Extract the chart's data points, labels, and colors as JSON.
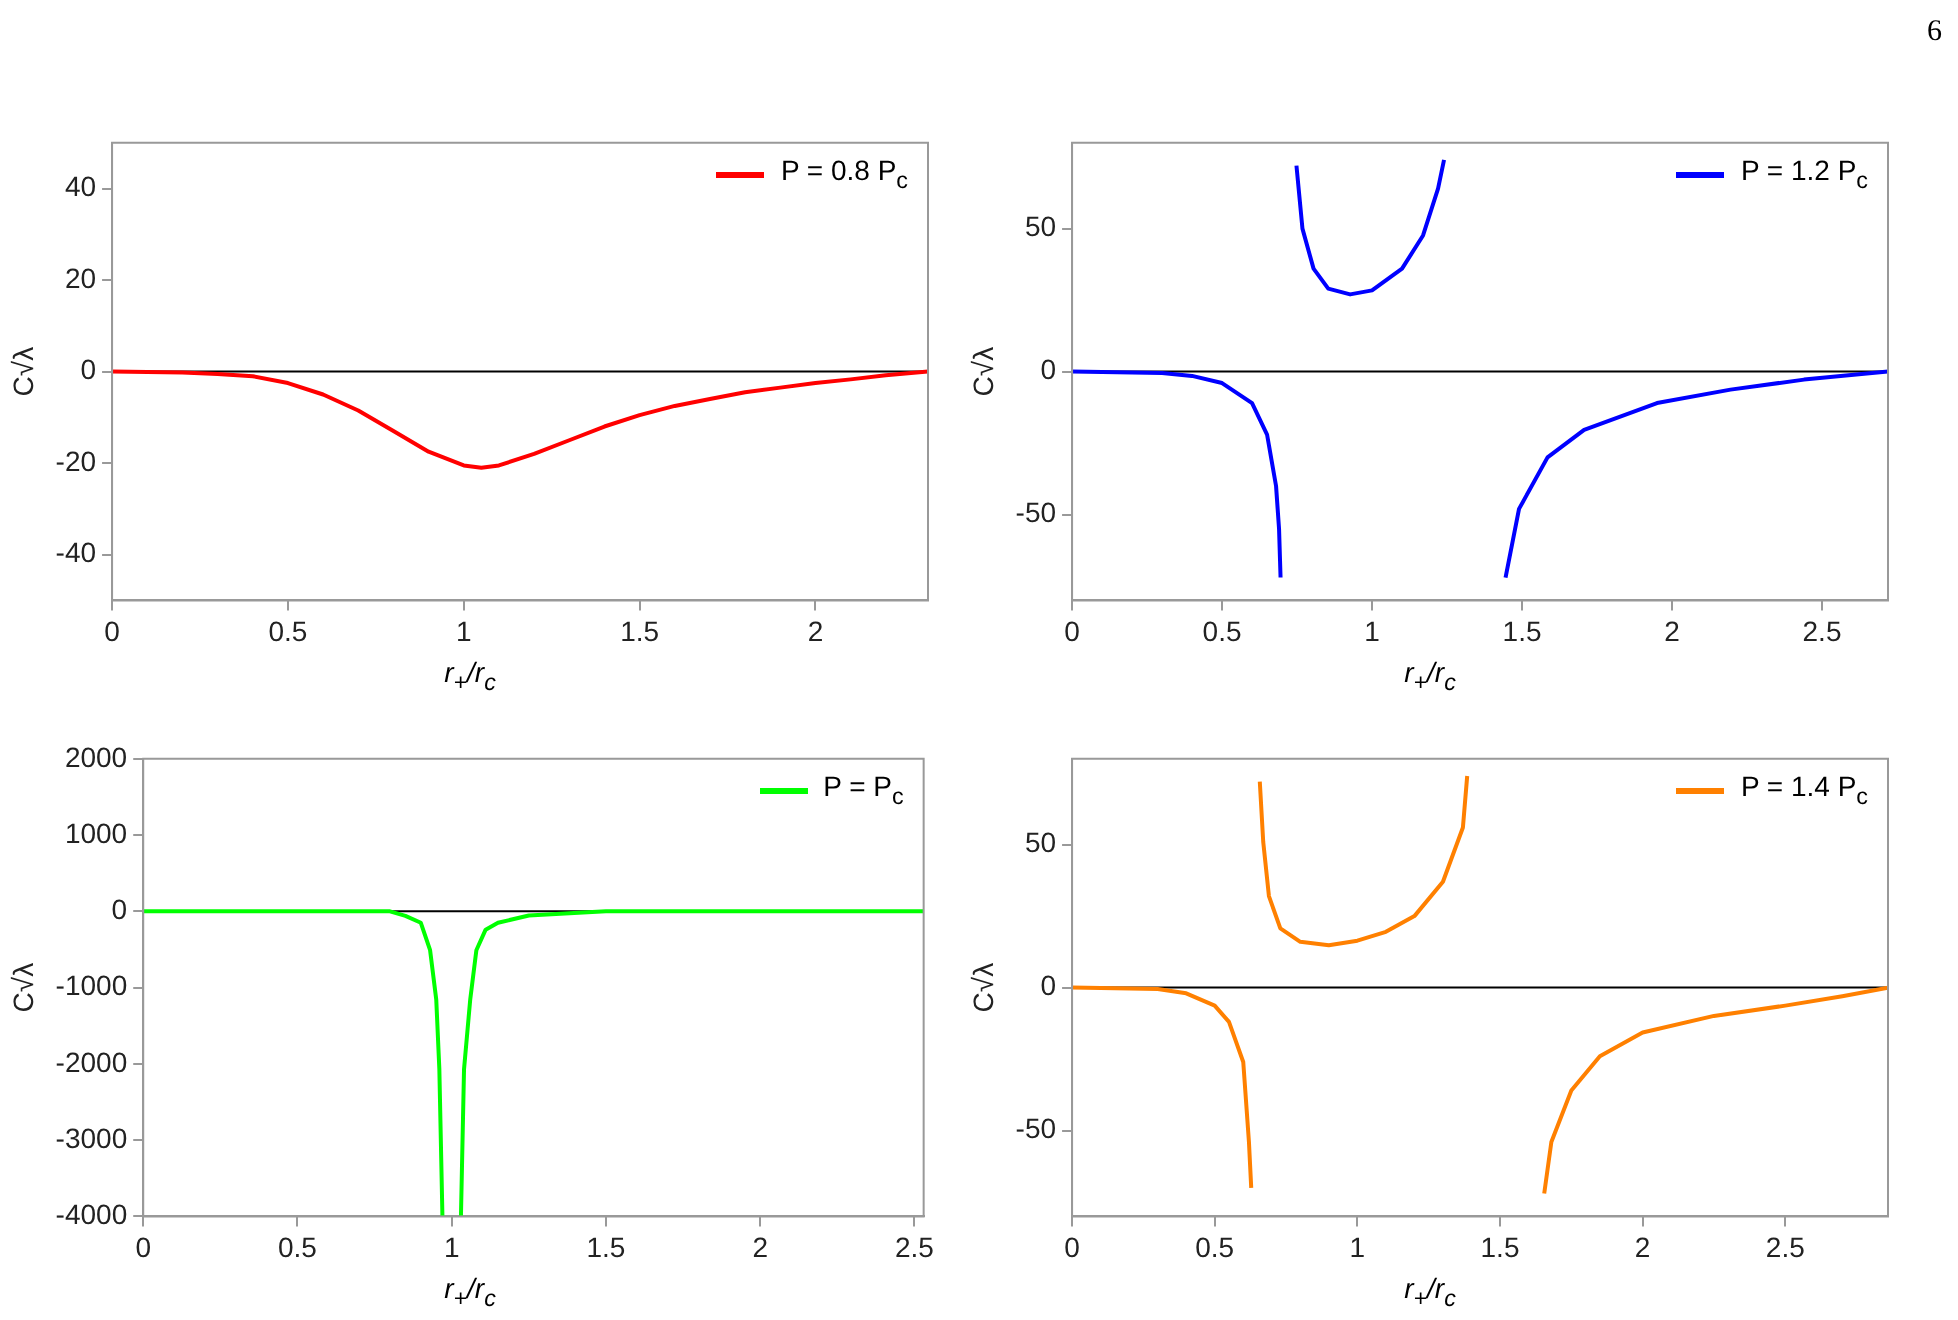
{
  "chart_data": [
    {
      "type": "line",
      "xlabel": "r$_{+}$/r$_{c}$",
      "ylabel": "C√λ",
      "annotations": [
        "6"
      ],
      "legend": "top right",
      "xlim": [
        0,
        2.32
      ],
      "xticks": [
        0,
        0.5,
        1,
        1.5,
        2
      ],
      "ylim": [
        -50,
        50
      ],
      "yticks": [
        -40,
        -20,
        0,
        20,
        40
      ],
      "ref_lines": [
        {
          "axis": "y",
          "value": 0,
          "color": "#000000"
        }
      ],
      "series": [
        {
          "name": "P = 0.8 P$_{c}$",
          "color": "#ff0000",
          "x": [
            0,
            0.2,
            0.3,
            0.4,
            0.5,
            0.6,
            0.7,
            0.8,
            0.9,
            1.0,
            1.05,
            1.1,
            1.2,
            1.3,
            1.4,
            1.5,
            1.6,
            1.7,
            1.8,
            1.9,
            2.0,
            2.1,
            2.2,
            2.32
          ],
          "values": [
            0,
            -0.2,
            -0.5,
            -1,
            -2.5,
            -5,
            -8.5,
            -13,
            -17.5,
            -20.5,
            -21,
            -20.5,
            -18,
            -15,
            -12,
            -9.5,
            -7.5,
            -6,
            -4.5,
            -3.5,
            -2.5,
            -1.7,
            -0.8,
            0
          ]
        }
      ]
    },
    {
      "type": "line",
      "xlabel": "r$_{+}$/r$_{c}$",
      "ylabel": "C√λ",
      "legend": "top right",
      "xlim": [
        0,
        2.72
      ],
      "xticks": [
        0,
        0.5,
        1,
        1.5,
        2,
        2.5
      ],
      "ylim": [
        -80,
        80
      ],
      "yticks": [
        -50,
        0,
        50
      ],
      "ref_lines": [
        {
          "axis": "y",
          "value": 0,
          "color": "#000000"
        }
      ],
      "series": [
        {
          "name": "P = 1.2 P$_{c}$",
          "color": "#0000ff",
          "x": [
            0,
            0.3,
            0.4,
            0.5,
            0.6,
            0.65,
            0.68,
            0.69,
            0.695,
            0.72,
            0.748,
            0.768,
            0.805,
            0.854,
            0.927,
            1.0,
            1.1,
            1.17,
            1.22,
            1.24,
            1.3,
            1.445,
            1.49,
            1.585,
            1.707,
            1.95,
            2.195,
            2.44,
            2.72
          ],
          "values": [
            0,
            -0.5,
            -1.5,
            -4,
            -11,
            -22,
            -40,
            -55,
            -72,
            null,
            72,
            50,
            36,
            29,
            27,
            28.4,
            36,
            47.6,
            64,
            74,
            null,
            -72,
            -48,
            -30,
            -20.4,
            -11,
            -6.3,
            -2.8,
            0
          ]
        }
      ]
    },
    {
      "type": "line",
      "xlabel": "r$_{+}$/r$_{c}$",
      "ylabel": "C√λ",
      "legend": "top right",
      "xlim": [
        0,
        2.53
      ],
      "xticks": [
        0,
        0.5,
        1,
        1.5,
        2,
        2.5
      ],
      "ylim": [
        -4000,
        2000
      ],
      "yticks": [
        -4000,
        -3000,
        -2000,
        -1000,
        0,
        1000,
        2000
      ],
      "ref_lines": [
        {
          "axis": "y",
          "value": 0,
          "color": "#000000"
        }
      ],
      "series": [
        {
          "name": "P =  P$_{c}$",
          "color": "#00ff00",
          "x": [
            0,
            0.7,
            0.8,
            0.85,
            0.9,
            0.93,
            0.95,
            0.96,
            0.97,
            1.0,
            1.03,
            1.04,
            1.06,
            1.08,
            1.11,
            1.15,
            1.25,
            1.5,
            2.0,
            2.53
          ],
          "values": [
            0,
            0,
            0,
            -60,
            -150,
            -510,
            -1160,
            -2070,
            -4000,
            null,
            -4000,
            -2070,
            -1160,
            -510,
            -240,
            -150,
            -55,
            0,
            0,
            0
          ]
        }
      ]
    },
    {
      "type": "line",
      "xlabel": "r$_{+}$/r$_{c}$",
      "ylabel": "C√λ",
      "legend": "top right",
      "xlim": [
        0,
        2.86
      ],
      "xticks": [
        0,
        0.5,
        1,
        1.5,
        2,
        2.5
      ],
      "ylim": [
        -80,
        80
      ],
      "yticks": [
        -50,
        0,
        50
      ],
      "ref_lines": [
        {
          "axis": "y",
          "value": 0,
          "color": "#000000"
        }
      ],
      "series": [
        {
          "name": "P = 1.4 P$_{c}$",
          "color": "#ff8000",
          "x": [
            0,
            0.3,
            0.4,
            0.5,
            0.55,
            0.6,
            0.62,
            0.628,
            0.64,
            0.658,
            0.67,
            0.69,
            0.73,
            0.8,
            0.9,
            1.0,
            1.1,
            1.2,
            1.3,
            1.37,
            1.385,
            1.5,
            1.655,
            1.68,
            1.75,
            1.85,
            2.0,
            2.25,
            2.5,
            2.7,
            2.86
          ],
          "values": [
            0,
            -0.5,
            -2,
            -6.3,
            -12,
            -26,
            -54,
            -70,
            null,
            72,
            51,
            32,
            20.7,
            16,
            14.8,
            16.4,
            19.5,
            25,
            37,
            56,
            74,
            null,
            -72,
            -54,
            -36,
            -24,
            -15.7,
            -9.9,
            -6.3,
            -3,
            0
          ]
        }
      ]
    }
  ]
}
